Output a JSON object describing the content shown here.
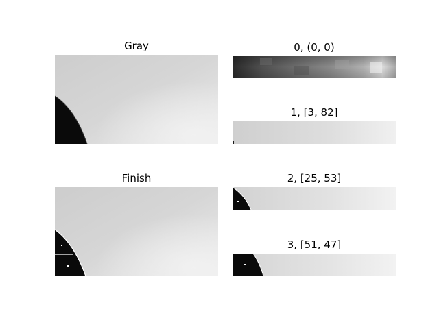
{
  "figure": {
    "panels": [
      {
        "title": "Gray"
      },
      {
        "title": "Finish"
      },
      {
        "title": "0, (0, 0)"
      },
      {
        "title": "1, [3, 82]"
      },
      {
        "title": "2, [25, 53]"
      },
      {
        "title": "3, [51, 47]"
      }
    ]
  }
}
